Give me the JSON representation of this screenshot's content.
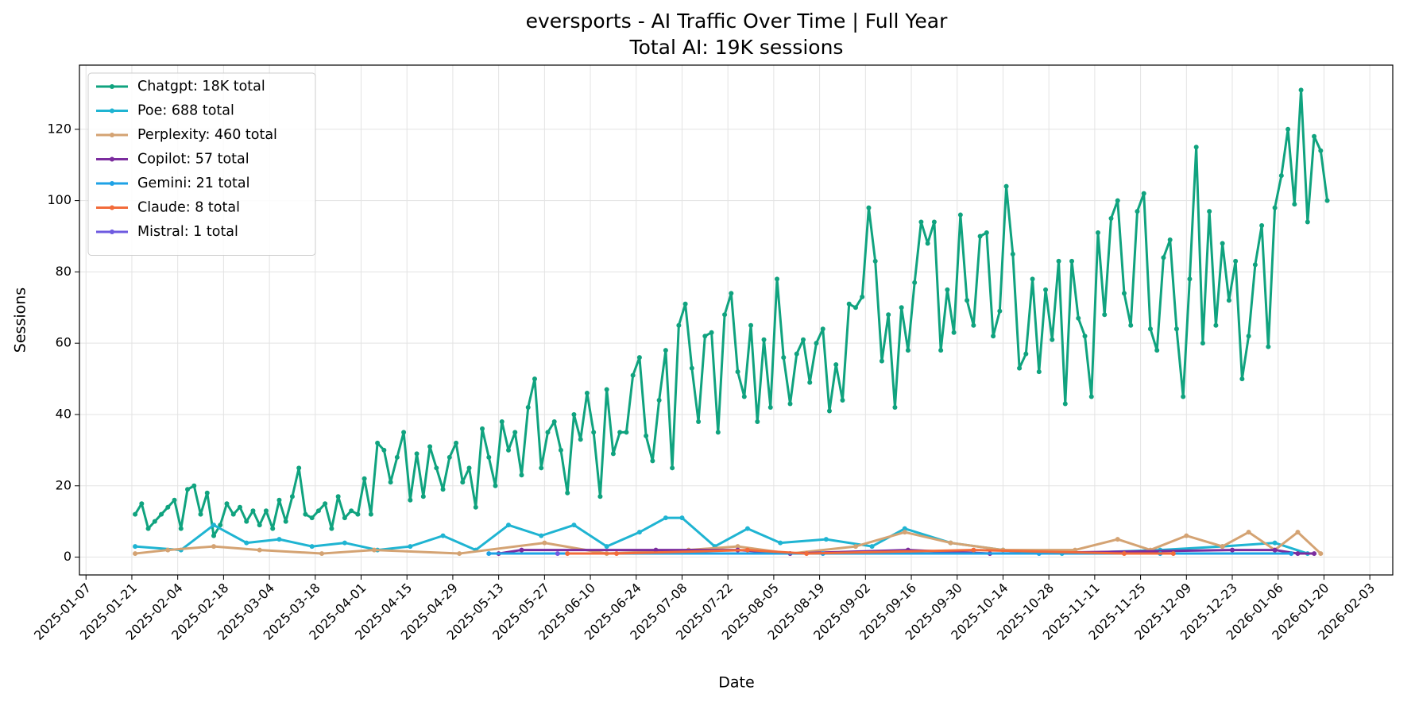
{
  "chart_data": {
    "type": "line",
    "title": "eversports - AI Traffic Over Time | Full Year",
    "subtitle": "Total AI: 19K sessions",
    "x_label": "Date",
    "y_label": "Sessions",
    "grid": true,
    "legend": "upper left",
    "xlim": [
      "2025-01-05",
      "2026-02-10"
    ],
    "xticks": [
      "2025-01-07",
      "2025-01-21",
      "2025-02-04",
      "2025-02-18",
      "2025-03-04",
      "2025-03-18",
      "2025-04-01",
      "2025-04-15",
      "2025-04-29",
      "2025-05-13",
      "2025-05-27",
      "2025-06-10",
      "2025-06-24",
      "2025-07-08",
      "2025-07-22",
      "2025-08-05",
      "2025-08-19",
      "2025-09-02",
      "2025-09-16",
      "2025-09-30",
      "2025-10-14",
      "2025-10-28",
      "2025-11-11",
      "2025-11-25",
      "2025-12-09",
      "2025-12-23",
      "2026-01-06",
      "2026-01-20",
      "2026-02-03"
    ],
    "ylim": [
      -5,
      138
    ],
    "yticks": [
      0,
      20,
      40,
      60,
      80,
      100,
      120
    ],
    "x": [
      "2025-01-22",
      "2025-01-24",
      "2025-01-26",
      "2025-01-28",
      "2025-01-30",
      "2025-02-01",
      "2025-02-03",
      "2025-02-05",
      "2025-02-07",
      "2025-02-09",
      "2025-02-11",
      "2025-02-13",
      "2025-02-15",
      "2025-02-17",
      "2025-02-19",
      "2025-02-21",
      "2025-02-23",
      "2025-02-25",
      "2025-02-27",
      "2025-03-01",
      "2025-03-03",
      "2025-03-05",
      "2025-03-07",
      "2025-03-09",
      "2025-03-11",
      "2025-03-13",
      "2025-03-15",
      "2025-03-17",
      "2025-03-19",
      "2025-03-21",
      "2025-03-23",
      "2025-03-25",
      "2025-03-27",
      "2025-03-29",
      "2025-03-31",
      "2025-04-02",
      "2025-04-04",
      "2025-04-06",
      "2025-04-08",
      "2025-04-10",
      "2025-04-12",
      "2025-04-14",
      "2025-04-16",
      "2025-04-18",
      "2025-04-20",
      "2025-04-22",
      "2025-04-24",
      "2025-04-26",
      "2025-04-28",
      "2025-04-30",
      "2025-05-02",
      "2025-05-04",
      "2025-05-06",
      "2025-05-08",
      "2025-05-10",
      "2025-05-12",
      "2025-05-14",
      "2025-05-16",
      "2025-05-18",
      "2025-05-20",
      "2025-05-22",
      "2025-05-24",
      "2025-05-26",
      "2025-05-28",
      "2025-05-30",
      "2025-06-01",
      "2025-06-03",
      "2025-06-05",
      "2025-06-07",
      "2025-06-09",
      "2025-06-11",
      "2025-06-13",
      "2025-06-15",
      "2025-06-17",
      "2025-06-19",
      "2025-06-21",
      "2025-06-23",
      "2025-06-25",
      "2025-06-27",
      "2025-06-29",
      "2025-07-01",
      "2025-07-03",
      "2025-07-05",
      "2025-07-07",
      "2025-07-09",
      "2025-07-11",
      "2025-07-13",
      "2025-07-15",
      "2025-07-17",
      "2025-07-19",
      "2025-07-21",
      "2025-07-23",
      "2025-07-25",
      "2025-07-27",
      "2025-07-29",
      "2025-07-31",
      "2025-08-02",
      "2025-08-04",
      "2025-08-06",
      "2025-08-08",
      "2025-08-10",
      "2025-08-12",
      "2025-08-14",
      "2025-08-16",
      "2025-08-18",
      "2025-08-20",
      "2025-08-22",
      "2025-08-24",
      "2025-08-26",
      "2025-08-28",
      "2025-08-30",
      "2025-09-01",
      "2025-09-03",
      "2025-09-05",
      "2025-09-07",
      "2025-09-09",
      "2025-09-11",
      "2025-09-13",
      "2025-09-15",
      "2025-09-17",
      "2025-09-19",
      "2025-09-21",
      "2025-09-23",
      "2025-09-25",
      "2025-09-27",
      "2025-09-29",
      "2025-10-01",
      "2025-10-03",
      "2025-10-05",
      "2025-10-07",
      "2025-10-09",
      "2025-10-11",
      "2025-10-13",
      "2025-10-15",
      "2025-10-17",
      "2025-10-19",
      "2025-10-21",
      "2025-10-23",
      "2025-10-25",
      "2025-10-27",
      "2025-10-29",
      "2025-10-31",
      "2025-11-02",
      "2025-11-04",
      "2025-11-06",
      "2025-11-08",
      "2025-11-10",
      "2025-11-12",
      "2025-11-14",
      "2025-11-16",
      "2025-11-18",
      "2025-11-20",
      "2025-11-22",
      "2025-11-24",
      "2025-11-26",
      "2025-11-28",
      "2025-11-30",
      "2025-12-02",
      "2025-12-04",
      "2025-12-06",
      "2025-12-08",
      "2025-12-10",
      "2025-12-12",
      "2025-12-14",
      "2025-12-16",
      "2025-12-18",
      "2025-12-20",
      "2025-12-22",
      "2025-12-24",
      "2025-12-26",
      "2025-12-28",
      "2025-12-30",
      "2026-01-01",
      "2026-01-03",
      "2026-01-05",
      "2026-01-07",
      "2026-01-09",
      "2026-01-11",
      "2026-01-13",
      "2026-01-15",
      "2026-01-17",
      "2026-01-19",
      "2026-01-21"
    ],
    "series": [
      {
        "name": "Chatgpt: 18K total",
        "color": "#10a37f",
        "values": [
          12,
          15,
          8,
          10,
          12,
          14,
          16,
          8,
          19,
          20,
          12,
          18,
          6,
          9,
          15,
          12,
          14,
          10,
          13,
          9,
          13,
          8,
          16,
          10,
          17,
          25,
          12,
          11,
          13,
          15,
          8,
          17,
          11,
          13,
          12,
          22,
          12,
          32,
          30,
          21,
          28,
          35,
          16,
          29,
          17,
          31,
          25,
          19,
          28,
          32,
          21,
          25,
          14,
          36,
          28,
          20,
          38,
          30,
          35,
          23,
          42,
          50,
          25,
          35,
          38,
          30,
          18,
          40,
          33,
          46,
          35,
          17,
          47,
          29,
          35,
          35,
          51,
          56,
          34,
          27,
          44,
          58,
          25,
          65,
          71,
          53,
          38,
          62,
          63,
          35,
          68,
          74,
          52,
          45,
          65,
          38,
          61,
          42,
          78,
          56,
          43,
          57,
          61,
          49,
          60,
          64,
          41,
          54,
          44,
          71,
          70,
          73,
          98,
          83,
          55,
          68,
          42,
          70,
          58,
          77,
          94,
          88,
          94,
          58,
          75,
          63,
          96,
          72,
          65,
          90,
          91,
          62,
          69,
          104,
          85,
          53,
          57,
          78,
          52,
          75,
          61,
          83,
          43,
          83,
          67,
          62,
          45,
          91,
          68,
          95,
          100,
          74,
          65,
          97,
          102,
          64,
          58,
          84,
          89,
          64,
          45,
          78,
          115,
          60,
          97,
          65,
          88,
          72,
          83,
          50,
          62,
          82,
          93,
          59,
          98,
          107,
          120,
          99,
          131,
          94,
          118,
          114,
          100
        ]
      },
      {
        "name": "Poe: 688 total",
        "color": "#1fb4d2",
        "x": [
          "2025-01-22",
          "2025-02-05",
          "2025-02-15",
          "2025-02-25",
          "2025-03-07",
          "2025-03-17",
          "2025-03-27",
          "2025-04-06",
          "2025-04-16",
          "2025-04-26",
          "2025-05-06",
          "2025-05-16",
          "2025-05-26",
          "2025-06-05",
          "2025-06-15",
          "2025-06-25",
          "2025-07-03",
          "2025-07-08",
          "2025-07-18",
          "2025-07-28",
          "2025-08-07",
          "2025-08-21",
          "2025-09-04",
          "2025-09-14",
          "2025-09-28",
          "2025-10-14",
          "2025-11-01",
          "2025-12-01",
          "2025-12-20",
          "2026-01-05",
          "2026-01-15"
        ],
        "values": [
          3,
          2,
          9,
          4,
          5,
          3,
          4,
          2,
          3,
          6,
          2,
          9,
          6,
          9,
          3,
          7,
          11,
          11,
          3,
          8,
          4,
          5,
          3,
          8,
          4,
          2,
          1,
          2,
          3,
          4,
          1
        ]
      },
      {
        "name": "Perplexity: 460 total",
        "color": "#d4a373",
        "x": [
          "2025-01-22",
          "2025-02-01",
          "2025-02-15",
          "2025-03-01",
          "2025-03-20",
          "2025-04-05",
          "2025-05-01",
          "2025-05-27",
          "2025-06-15",
          "2025-07-10",
          "2025-07-25",
          "2025-08-10",
          "2025-08-30",
          "2025-09-14",
          "2025-09-28",
          "2025-10-14",
          "2025-11-05",
          "2025-11-18",
          "2025-11-28",
          "2025-12-09",
          "2025-12-20",
          "2025-12-28",
          "2026-01-05",
          "2026-01-12",
          "2026-01-19"
        ],
        "values": [
          1,
          2,
          3,
          2,
          1,
          2,
          1,
          4,
          1,
          2,
          3,
          1,
          3,
          7,
          4,
          2,
          2,
          5,
          2,
          6,
          3,
          7,
          2,
          7,
          1
        ]
      },
      {
        "name": "Copilot: 57 total",
        "color": "#7b2c9e",
        "x": [
          "2025-05-13",
          "2025-05-20",
          "2025-06-30",
          "2025-07-25",
          "2025-08-10",
          "2025-09-15",
          "2025-10-10",
          "2025-12-23",
          "2026-01-05",
          "2026-01-12",
          "2026-01-17"
        ],
        "values": [
          1,
          2,
          2,
          2,
          1,
          2,
          1,
          2,
          2,
          1,
          1
        ]
      },
      {
        "name": "Gemini: 21 total",
        "color": "#1ea2e6",
        "x": [
          "2025-05-10",
          "2025-08-20",
          "2025-10-25",
          "2025-12-01",
          "2026-01-10"
        ],
        "values": [
          1,
          1,
          1,
          1,
          1
        ]
      },
      {
        "name": "Claude: 8 total",
        "color": "#f26b3a",
        "x": [
          "2025-06-03",
          "2025-06-18",
          "2025-07-28",
          "2025-08-15",
          "2025-10-05",
          "2025-11-20",
          "2025-12-05"
        ],
        "values": [
          1,
          1,
          2,
          1,
          2,
          1,
          1
        ]
      },
      {
        "name": "Mistral: 1 total",
        "color": "#6e5ae0",
        "x": [
          "2025-05-31"
        ],
        "values": [
          1
        ]
      }
    ]
  }
}
